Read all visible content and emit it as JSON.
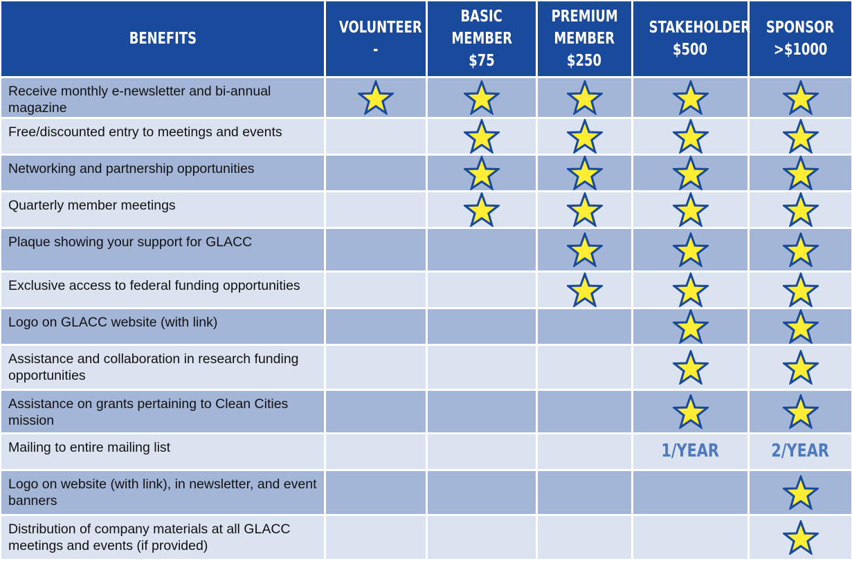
{
  "headers": {
    "benefits": "BENEFITS",
    "volunteer": [
      "VOLUNTEER",
      "-"
    ],
    "basic": [
      "BASIC",
      "MEMBER",
      "$75"
    ],
    "premium": [
      "PREMIUM",
      "MEMBER",
      "$250"
    ],
    "stakeholder": [
      "STAKEHOLDER",
      "$500"
    ],
    "sponsor": [
      "SPONSOR",
      ">$1000"
    ]
  },
  "rows": [
    {
      "label": "Receive monthly e-newsletter and bi-annual magazine",
      "marks": [
        "star",
        "star",
        "star",
        "star",
        "star"
      ]
    },
    {
      "label": "Free/discounted entry to meetings and events",
      "marks": [
        "",
        "star",
        "star",
        "star",
        "star"
      ]
    },
    {
      "label": "Networking and partnership opportunities",
      "marks": [
        "",
        "star",
        "star",
        "star",
        "star"
      ]
    },
    {
      "label": "Quarterly member meetings",
      "marks": [
        "",
        "star",
        "star",
        "star",
        "star"
      ]
    },
    {
      "label": "Plaque showing your support for GLACC",
      "marks": [
        "",
        "",
        "star",
        "star",
        "star"
      ]
    },
    {
      "label": "Exclusive access to federal funding opportunities",
      "marks": [
        "",
        "",
        "star",
        "star",
        "star"
      ]
    },
    {
      "label": "Logo on GLACC website (with link)",
      "marks": [
        "",
        "",
        "",
        "star",
        "star"
      ]
    },
    {
      "label": "Assistance and collaboration in research funding opportunities",
      "marks": [
        "",
        "",
        "",
        "star",
        "star"
      ]
    },
    {
      "label": "Assistance on grants pertaining to Clean Cities mission",
      "marks": [
        "",
        "",
        "",
        "star",
        "star"
      ]
    },
    {
      "label": "Mailing to entire mailing list",
      "marks": [
        "",
        "",
        "",
        "1/YEAR",
        "2/YEAR"
      ]
    },
    {
      "label": "Logo on website (with link), in newsletter, and event banners",
      "marks": [
        "",
        "",
        "",
        "",
        "star"
      ]
    },
    {
      "label": "Distribution of company materials at all GLACC meetings and events (if provided)",
      "marks": [
        "",
        "",
        "",
        "",
        "star"
      ]
    }
  ],
  "colors": {
    "header_bg": "#1a4a9c",
    "row_dark": "#a4b6d8",
    "row_light": "#dce3f0",
    "star_fill": "#ffee33",
    "star_stroke": "#1a4a9c",
    "freq_text": "#4f79bd"
  },
  "icons": {
    "mark": "star-icon"
  }
}
